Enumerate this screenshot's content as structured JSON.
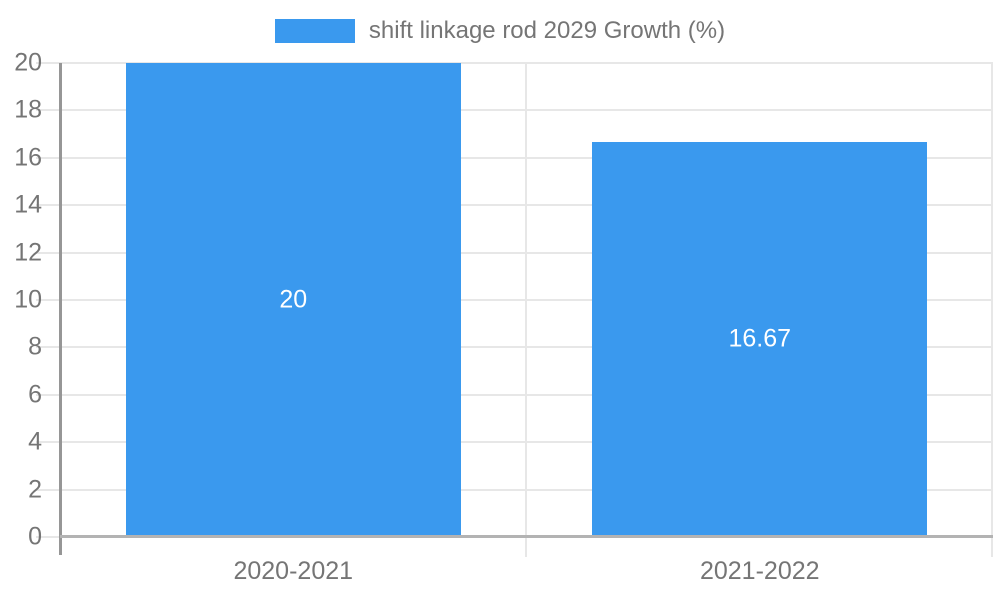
{
  "chart_data": {
    "type": "bar",
    "title": "",
    "legend": "shift linkage rod 2029 Growth (%)",
    "legend_position": "top",
    "categories": [
      "2020-2021",
      "2021-2022"
    ],
    "values": [
      20,
      16.67
    ],
    "value_labels": [
      "20",
      "16.67"
    ],
    "xlabel": "",
    "ylabel": "",
    "ylim": [
      0,
      20
    ],
    "ytick_step": 2,
    "yticks": [
      0,
      2,
      4,
      6,
      8,
      10,
      12,
      14,
      16,
      18,
      20
    ],
    "grid": true,
    "colors": {
      "bar": "#3a99ee",
      "grid_line": "#e7e7e7",
      "y_axis_line": "#969696",
      "x_axis_line": "#b3b3b3",
      "tick_label": "#757575",
      "legend_label": "#757575",
      "bar_label": "#ffffff",
      "background": "#ffffff"
    }
  }
}
